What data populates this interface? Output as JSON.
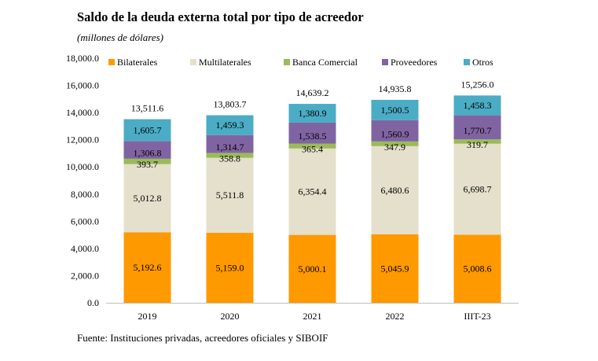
{
  "title": "Saldo de la deuda externa total por tipo de acreedor",
  "subtitle": "(millones de dólares)",
  "source": "Fuente: Instituciones privadas, acreedores oficiales y SIBOIF",
  "chart_data": {
    "type": "bar",
    "stacked": true,
    "title": "Saldo de la deuda externa total por tipo de acreedor",
    "subtitle": "(millones de dólares)",
    "categories": [
      "2019",
      "2020",
      "2021",
      "2022",
      "IIIT-23"
    ],
    "series": [
      {
        "name": "Bilaterales",
        "color": "#FF9900",
        "values": [
          5192.6,
          5159.0,
          5000.1,
          5045.9,
          5008.6
        ],
        "labels": [
          "5,192.6",
          "5,159.0",
          "5,000.1",
          "5,045.9",
          "5,008.6"
        ]
      },
      {
        "name": "Multilaterales",
        "color": "#E4E0CB",
        "values": [
          5012.8,
          5511.8,
          6354.4,
          6480.6,
          6698.7
        ],
        "labels": [
          "5,012.8",
          "5,511.8",
          "6,354.4",
          "6,480.6",
          "6,698.7"
        ]
      },
      {
        "name": "Banca Comercial",
        "color": "#9BBB59",
        "values": [
          393.7,
          358.8,
          365.4,
          347.9,
          319.7
        ],
        "labels": [
          "393.7",
          "358.8",
          "365.4",
          "347.9",
          "319.7"
        ]
      },
      {
        "name": "Proveedores",
        "color": "#8064A2",
        "values": [
          1306.8,
          1314.7,
          1538.5,
          1560.9,
          1770.7
        ],
        "labels": [
          "1,306.8",
          "1,314.7",
          "1,538.5",
          "1,560.9",
          "1,770.7"
        ]
      },
      {
        "name": "Otros",
        "color": "#4BACC6",
        "values": [
          1605.7,
          1459.3,
          1380.9,
          1500.5,
          1458.3
        ],
        "labels": [
          "1,605.7",
          "1,459.3",
          "1,380.9",
          "1,500.5",
          "1,458.3"
        ]
      }
    ],
    "totals": [
      13511.6,
      13803.7,
      14639.2,
      14935.8,
      15256.0
    ],
    "total_labels": [
      "13,511.6",
      "13,803.7",
      "14,639.2",
      "14,935.8",
      "15,256.0"
    ],
    "ylim": [
      0,
      18000
    ],
    "yticks": [
      "0.0",
      "2,000.0",
      "4,000.0",
      "6,000.0",
      "8,000.0",
      "10,000.0",
      "12,000.0",
      "14,000.0",
      "16,000.0",
      "18,000.0"
    ],
    "grid": false,
    "legend": "top"
  }
}
